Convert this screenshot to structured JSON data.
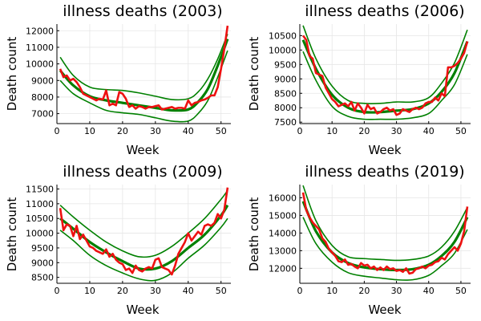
{
  "chart_data": [
    {
      "type": "line",
      "title": "illness deaths (2003)",
      "xlabel": "Week",
      "ylabel": "Death count",
      "xlim": [
        0,
        53
      ],
      "ylim": [
        6400,
        12400
      ],
      "xticks": [
        0,
        10,
        20,
        30,
        40,
        50
      ],
      "yticks": [
        7000,
        8000,
        9000,
        10000,
        11000,
        12000
      ],
      "colors": {
        "fit": "#008000",
        "band": "#008000",
        "observed": "#ee1111"
      },
      "fit_curve": {
        "x": [
          1,
          5,
          10,
          15,
          20,
          25,
          30,
          35,
          40,
          43,
          46,
          49,
          52
        ],
        "y": [
          9600,
          8700,
          8050,
          7800,
          7650,
          7500,
          7350,
          7200,
          7250,
          7700,
          8500,
          9900,
          11500
        ]
      },
      "band_upper": {
        "x": [
          1,
          5,
          10,
          15,
          20,
          25,
          30,
          35,
          40,
          43,
          46,
          49,
          52
        ],
        "y": [
          10400,
          9300,
          8600,
          8450,
          8400,
          8250,
          8050,
          7850,
          7900,
          8300,
          9100,
          10300,
          11800
        ]
      },
      "band_lower": {
        "x": [
          1,
          5,
          10,
          15,
          20,
          25,
          30,
          35,
          40,
          43,
          46,
          49,
          52
        ],
        "y": [
          9000,
          8200,
          7650,
          7200,
          7050,
          6950,
          6750,
          6550,
          6550,
          7000,
          7800,
          9200,
          10800
        ]
      },
      "observed": {
        "x": [
          1,
          2,
          3,
          4,
          5,
          6,
          7,
          8,
          9,
          10,
          11,
          12,
          13,
          14,
          15,
          16,
          17,
          18,
          19,
          20,
          21,
          22,
          23,
          24,
          25,
          26,
          27,
          28,
          29,
          30,
          31,
          32,
          33,
          34,
          35,
          36,
          37,
          38,
          39,
          40,
          41,
          42,
          43,
          44,
          45,
          46,
          47,
          48,
          49,
          50,
          51,
          52
        ],
        "y": [
          9700,
          9200,
          9300,
          9000,
          9100,
          8900,
          8600,
          8200,
          8100,
          8000,
          7900,
          7800,
          7900,
          7850,
          8400,
          7500,
          7600,
          7500,
          8300,
          8200,
          7900,
          7400,
          7500,
          7300,
          7450,
          7400,
          7300,
          7400,
          7400,
          7450,
          7500,
          7250,
          7300,
          7350,
          7400,
          7300,
          7350,
          7350,
          7300,
          7800,
          7500,
          7650,
          7700,
          7800,
          7850,
          7950,
          8100,
          8100,
          8600,
          9700,
          10900,
          12300
        ]
      }
    },
    {
      "type": "line",
      "title": "illness deaths (2006)",
      "xlabel": "Week",
      "ylabel": "Death count",
      "xlim": [
        0,
        53
      ],
      "ylim": [
        7450,
        10900
      ],
      "xticks": [
        0,
        10,
        20,
        30,
        40,
        50
      ],
      "yticks": [
        7500,
        8000,
        8500,
        9000,
        9500,
        10000,
        10500
      ],
      "colors": {
        "fit": "#008000",
        "band": "#008000",
        "observed": "#ee1111"
      },
      "fit_curve": {
        "x": [
          1,
          5,
          10,
          15,
          20,
          25,
          30,
          35,
          40,
          44,
          48,
          52
        ],
        "y": [
          10350,
          9350,
          8450,
          8000,
          7850,
          7850,
          7900,
          7950,
          8150,
          8550,
          9200,
          10300
        ]
      },
      "band_upper": {
        "x": [
          1,
          5,
          10,
          15,
          20,
          25,
          30,
          35,
          40,
          44,
          48,
          52
        ],
        "y": [
          10850,
          9700,
          8750,
          8250,
          8150,
          8150,
          8200,
          8200,
          8350,
          8850,
          9550,
          10700
        ]
      },
      "band_lower": {
        "x": [
          1,
          5,
          10,
          15,
          20,
          25,
          30,
          35,
          40,
          44,
          48,
          52
        ],
        "y": [
          9950,
          8950,
          8050,
          7700,
          7600,
          7600,
          7600,
          7650,
          7800,
          8250,
          8800,
          9850
        ]
      },
      "observed": {
        "x": [
          1,
          2,
          3,
          4,
          5,
          6,
          7,
          8,
          9,
          10,
          11,
          12,
          13,
          14,
          15,
          16,
          17,
          18,
          19,
          20,
          21,
          22,
          23,
          24,
          25,
          26,
          27,
          28,
          29,
          30,
          31,
          32,
          33,
          34,
          35,
          36,
          37,
          38,
          39,
          40,
          41,
          42,
          43,
          44,
          45,
          46,
          47,
          48,
          49,
          50,
          51,
          52
        ],
        "y": [
          10500,
          10350,
          9800,
          9700,
          9200,
          9150,
          9100,
          8700,
          8500,
          8300,
          8200,
          8050,
          8100,
          8150,
          8050,
          8200,
          7900,
          8150,
          8000,
          7800,
          8100,
          7950,
          8000,
          7800,
          7850,
          7950,
          8000,
          7900,
          7950,
          7750,
          7800,
          7950,
          7900,
          7850,
          7950,
          8000,
          7950,
          8000,
          8150,
          8200,
          8200,
          8350,
          8250,
          8500,
          8400,
          9400,
          9400,
          9450,
          9550,
          9700,
          9900,
          10300
        ]
      }
    },
    {
      "type": "line",
      "title": "illness deaths (2009)",
      "xlabel": "Week",
      "ylabel": "Death count",
      "xlim": [
        0,
        53
      ],
      "ylim": [
        8300,
        11650
      ],
      "xticks": [
        0,
        10,
        20,
        30,
        40,
        50
      ],
      "yticks": [
        8500,
        9000,
        9500,
        10000,
        10500,
        11000,
        11500
      ],
      "colors": {
        "fit": "#008000",
        "band": "#008000",
        "observed": "#ee1111"
      },
      "fit_curve": {
        "x": [
          1,
          5,
          10,
          15,
          20,
          25,
          30,
          35,
          40,
          45,
          50,
          52
        ],
        "y": [
          10500,
          10150,
          9700,
          9350,
          9050,
          8800,
          8800,
          9050,
          9500,
          9950,
          10600,
          10950
        ]
      },
      "band_upper": {
        "x": [
          1,
          5,
          10,
          15,
          20,
          25,
          30,
          35,
          40,
          45,
          50,
          52
        ],
        "y": [
          10950,
          10550,
          10100,
          9700,
          9400,
          9200,
          9250,
          9550,
          10000,
          10500,
          11150,
          11450
        ]
      },
      "band_lower": {
        "x": [
          1,
          5,
          10,
          15,
          20,
          25,
          30,
          35,
          40,
          45,
          50,
          52
        ],
        "y": [
          10100,
          9750,
          9250,
          8900,
          8650,
          8450,
          8400,
          8650,
          9150,
          9600,
          10200,
          10500
        ]
      },
      "observed": {
        "x": [
          1,
          2,
          3,
          4,
          5,
          6,
          7,
          8,
          9,
          10,
          11,
          12,
          13,
          14,
          15,
          16,
          17,
          18,
          19,
          20,
          21,
          22,
          23,
          24,
          25,
          26,
          27,
          28,
          29,
          30,
          31,
          32,
          33,
          34,
          35,
          36,
          37,
          38,
          39,
          40,
          41,
          42,
          43,
          44,
          45,
          46,
          47,
          48,
          49,
          50,
          51,
          52
        ],
        "y": [
          10850,
          10100,
          10300,
          10250,
          9900,
          10250,
          9800,
          9950,
          9750,
          9550,
          9500,
          9400,
          9350,
          9300,
          9450,
          9200,
          9300,
          9100,
          9000,
          8950,
          8750,
          8800,
          8650,
          8900,
          8750,
          8700,
          8800,
          8850,
          8800,
          9100,
          9150,
          8850,
          8800,
          8750,
          8600,
          8900,
          9300,
          9500,
          9700,
          10000,
          9750,
          9900,
          10050,
          9950,
          10250,
          10300,
          10250,
          10350,
          10650,
          10500,
          10800,
          11550
        ]
      }
    },
    {
      "type": "line",
      "title": "illness deaths (2019)",
      "xlabel": "Week",
      "ylabel": "Death count",
      "xlim": [
        0,
        53
      ],
      "ylim": [
        11150,
        16750
      ],
      "xticks": [
        0,
        10,
        20,
        30,
        40,
        50
      ],
      "yticks": [
        12000,
        13000,
        14000,
        15000,
        16000
      ],
      "colors": {
        "fit": "#008000",
        "band": "#008000",
        "observed": "#ee1111"
      },
      "fit_curve": {
        "x": [
          1,
          5,
          10,
          15,
          20,
          25,
          30,
          35,
          40,
          44,
          48,
          52
        ],
        "y": [
          15800,
          14100,
          12900,
          12300,
          12050,
          11950,
          11900,
          11950,
          12200,
          12700,
          13500,
          14900
        ]
      },
      "band_upper": {
        "x": [
          1,
          5,
          10,
          15,
          20,
          25,
          30,
          35,
          40,
          44,
          48,
          52
        ],
        "y": [
          16700,
          14700,
          13300,
          12650,
          12550,
          12500,
          12450,
          12500,
          12700,
          13200,
          14100,
          15450
        ]
      },
      "band_lower": {
        "x": [
          1,
          5,
          10,
          15,
          20,
          25,
          30,
          35,
          40,
          44,
          48,
          52
        ],
        "y": [
          14900,
          13400,
          12350,
          11750,
          11550,
          11450,
          11350,
          11350,
          11600,
          12150,
          12850,
          14200
        ]
      },
      "observed": {
        "x": [
          1,
          2,
          3,
          4,
          5,
          6,
          7,
          8,
          9,
          10,
          11,
          12,
          13,
          14,
          15,
          16,
          17,
          18,
          19,
          20,
          21,
          22,
          23,
          24,
          25,
          26,
          27,
          28,
          29,
          30,
          31,
          32,
          33,
          34,
          35,
          36,
          37,
          38,
          39,
          40,
          41,
          42,
          43,
          44,
          45,
          46,
          47,
          48,
          49,
          50,
          51,
          52
        ],
        "y": [
          16300,
          15300,
          14900,
          14600,
          14400,
          14200,
          13700,
          13500,
          13100,
          12900,
          12700,
          12400,
          12350,
          12500,
          12200,
          12250,
          12100,
          12000,
          12300,
          12150,
          12200,
          12000,
          12100,
          11900,
          12050,
          11900,
          12100,
          11950,
          12000,
          11850,
          11900,
          11800,
          12000,
          11700,
          11750,
          11950,
          12000,
          12100,
          12000,
          12150,
          12200,
          12350,
          12400,
          12600,
          12500,
          12800,
          13000,
          13200,
          13000,
          13400,
          14100,
          15500
        ]
      }
    }
  ]
}
